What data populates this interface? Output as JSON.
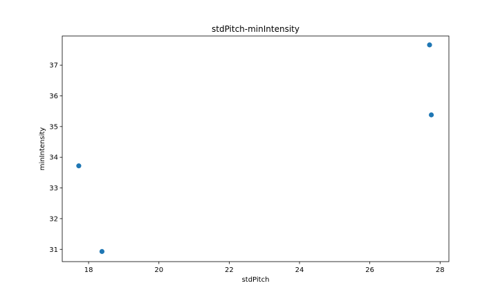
{
  "chart_data": {
    "type": "scatter",
    "title": "stdPitch-minIntensity",
    "xlabel": "stdPitch",
    "ylabel": "minIntensity",
    "xlim": [
      17.25,
      28.25
    ],
    "ylim": [
      30.6,
      37.95
    ],
    "xticks": [
      18,
      20,
      22,
      24,
      26,
      28
    ],
    "yticks": [
      31,
      32,
      33,
      34,
      35,
      36,
      37
    ],
    "grid": false,
    "point_color": "#1f77b4",
    "points": [
      {
        "x": 17.72,
        "y": 33.72
      },
      {
        "x": 18.38,
        "y": 30.93
      },
      {
        "x": 27.7,
        "y": 37.66
      },
      {
        "x": 27.75,
        "y": 35.38
      }
    ]
  }
}
